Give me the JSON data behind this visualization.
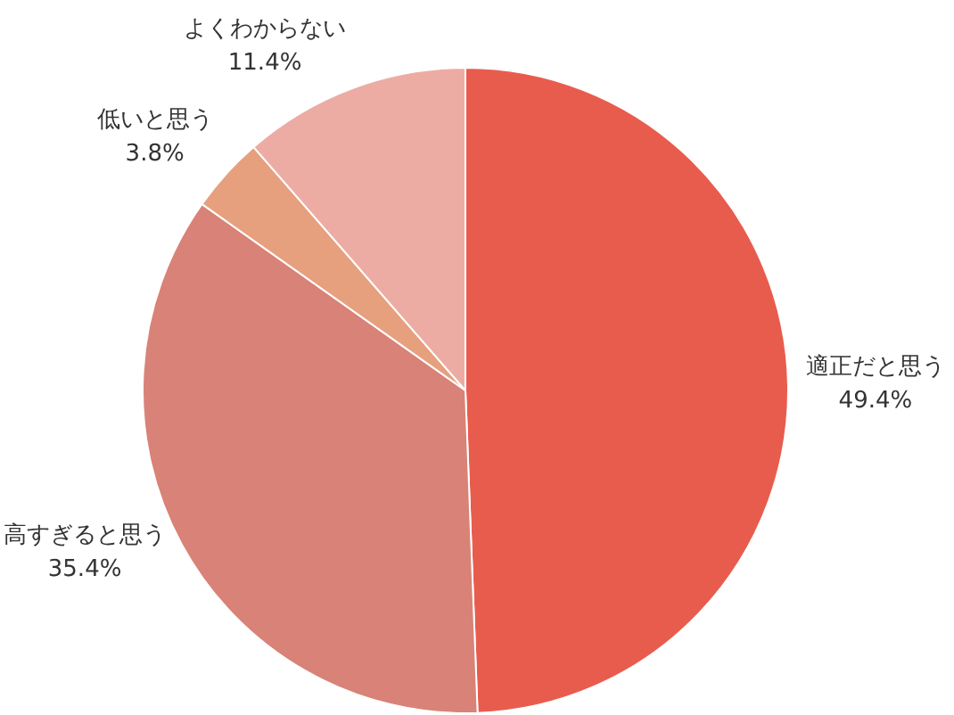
{
  "chart_data": {
    "type": "pie",
    "categories": [
      "適正だと思う",
      "高すぎると思う",
      "低いと思う",
      "よくわからない"
    ],
    "values": [
      49.4,
      35.4,
      3.8,
      11.4
    ],
    "value_labels": [
      "49.4%",
      "35.4%",
      "3.8%",
      "11.4%"
    ],
    "colors": [
      "#e85c4e",
      "#d98277",
      "#e6a07e",
      "#ecaca4"
    ]
  }
}
